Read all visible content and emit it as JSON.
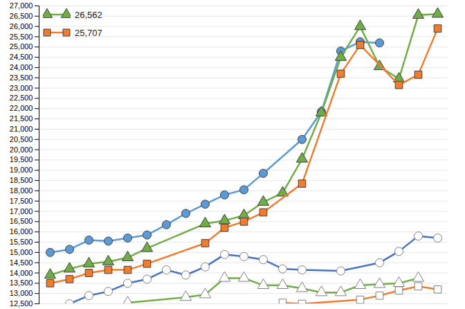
{
  "chart_data": {
    "type": "line",
    "categories": [
      null,
      null,
      null,
      null,
      null,
      null,
      null,
      null,
      null,
      null,
      null,
      null,
      null,
      null,
      null,
      null,
      null,
      null,
      null,
      null,
      null
    ],
    "series": [
      {
        "color": "#5b9bd5",
        "marker": "circle",
        "values": [
          15000,
          15150,
          15600,
          15550,
          15700,
          15850,
          16350,
          16900,
          17350,
          17800,
          18050,
          18850,
          null,
          20500,
          21850,
          24800,
          25250,
          25200,
          null,
          null,
          null
        ]
      },
      {
        "color": "#70ad47",
        "marker": "triangle",
        "values": [
          13900,
          14200,
          14450,
          14550,
          14750,
          15200,
          null,
          null,
          16400,
          16550,
          16800,
          17450,
          17900,
          19550,
          21800,
          24500,
          26000,
          24050,
          23450,
          26550,
          26600
        ]
      },
      {
        "color": "#ed7d31",
        "marker": "square",
        "values": [
          13500,
          13700,
          14000,
          14150,
          14150,
          14450,
          null,
          null,
          15450,
          16200,
          16500,
          16950,
          null,
          18350,
          null,
          23700,
          25100,
          null,
          23150,
          23650,
          25900
        ]
      },
      {
        "color": "#4472c4",
        "marker": "open circle",
        "values": [
          null,
          12500,
          12900,
          13100,
          13500,
          13700,
          14150,
          13900,
          14300,
          14900,
          14800,
          14650,
          14200,
          14150,
          null,
          14100,
          null,
          14500,
          15050,
          15800,
          15700
        ]
      },
      {
        "color": "#70ad47",
        "marker": "open triangle",
        "values": [
          null,
          null,
          null,
          null,
          12550,
          null,
          null,
          12820,
          12950,
          13750,
          13750,
          13400,
          13400,
          13250,
          13050,
          13050,
          13400,
          13450,
          13500,
          13750,
          null
        ]
      },
      {
        "color": "#ed7d31",
        "marker": "open square",
        "values": [
          null,
          null,
          null,
          null,
          null,
          null,
          null,
          null,
          null,
          null,
          null,
          null,
          12550,
          12500,
          null,
          null,
          12700,
          12900,
          13150,
          13350,
          13200
        ]
      }
    ],
    "annotations": [
      {
        "text": "26,562",
        "series": 1
      },
      {
        "text": "25,707",
        "series": 2
      }
    ],
    "ylim": [
      12500,
      27000
    ],
    "yticks": [
      {
        "value": 12500,
        "label": "12,500"
      },
      {
        "value": 13000,
        "label": "13,000"
      },
      {
        "value": 13500,
        "label": "13,500"
      },
      {
        "value": 14000,
        "label": "14,000"
      },
      {
        "value": 14500,
        "label": "14,500"
      },
      {
        "value": 15000,
        "label": "15,000"
      },
      {
        "value": 15500,
        "label": "15,500"
      },
      {
        "value": 16000,
        "label": "16,000"
      },
      {
        "value": 16500,
        "label": "16,500"
      },
      {
        "value": 17000,
        "label": "17,000"
      },
      {
        "value": 17500,
        "label": "17,500"
      },
      {
        "value": 18000,
        "label": "18,000"
      },
      {
        "value": 18500,
        "label": "18,500"
      },
      {
        "value": 19000,
        "label": "19,000"
      },
      {
        "value": 19500,
        "label": "19,500"
      },
      {
        "value": 20000,
        "label": "20,000"
      },
      {
        "value": 20500,
        "label": "20,500"
      },
      {
        "value": 21000,
        "label": "21,000"
      },
      {
        "value": 21500,
        "label": "21,500"
      },
      {
        "value": 22000,
        "label": "22,000"
      },
      {
        "value": 22500,
        "label": "22,500"
      },
      {
        "value": 23000,
        "label": "23,000"
      },
      {
        "value": 23500,
        "label": "23,500"
      },
      {
        "value": 24000,
        "label": "24,000"
      },
      {
        "value": 24500,
        "label": "24,500"
      },
      {
        "value": 25000,
        "label": "25,000"
      },
      {
        "value": 25500,
        "label": "25,500"
      },
      {
        "value": 26000,
        "label": "26,000"
      },
      {
        "value": 26500,
        "label": "26,500"
      },
      {
        "value": 27000,
        "label": "27,000"
      }
    ],
    "grid": true,
    "tick_labels": "y"
  }
}
